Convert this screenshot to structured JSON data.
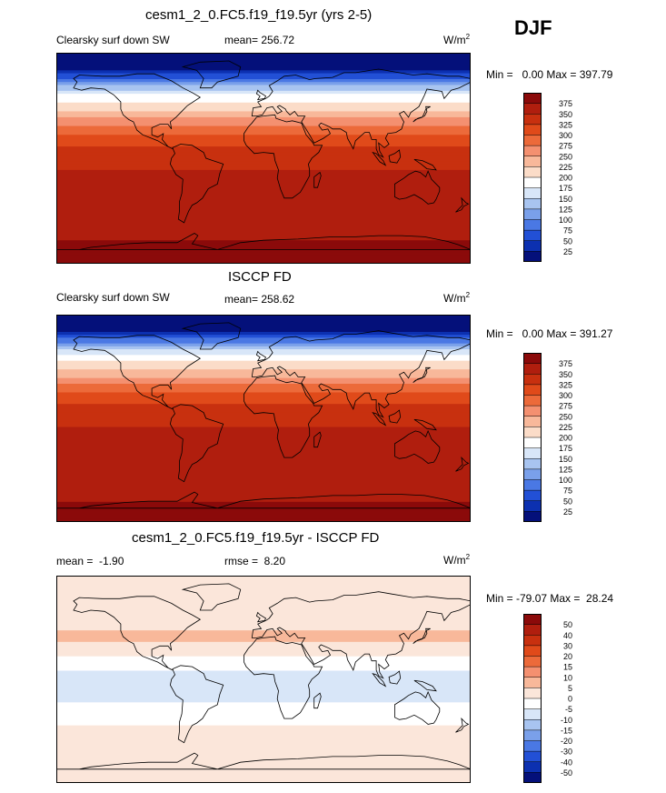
{
  "season": "DJF",
  "panels": [
    {
      "title": "cesm1_2_0.FC5.f19_f19.5yr (yrs 2-5)",
      "left_label": "Clearsky surf down SW",
      "stat_label": "mean= 256.72",
      "extra_label": "",
      "units_base": "W/m",
      "units_exp": "2",
      "minmax": "Min =   0.00 Max = 397.79"
    },
    {
      "title": "ISCCP FD",
      "left_label": "Clearsky surf down SW",
      "stat_label": "mean= 258.62",
      "extra_label": "",
      "units_base": "W/m",
      "units_exp": "2",
      "minmax": "Min =   0.00 Max = 391.27"
    },
    {
      "title": "cesm1_2_0.FC5.f19_f19.5yr - ISCCP FD",
      "left_label": "mean =  -1.90",
      "stat_label": "rmse =  8.20",
      "extra_label": "",
      "units_base": "W/m",
      "units_exp": "2",
      "minmax": "Min = -79.07 Max =  28.24"
    }
  ],
  "chart_data": [
    {
      "type": "heatmap",
      "title": "cesm1_2_0.FC5.f19_f19.5yr (yrs 2-5)",
      "variable": "Clearsky surf down SW",
      "mean": 256.72,
      "min": 0.0,
      "max": 397.79,
      "colorbar": {
        "levels": [
          375,
          350,
          325,
          300,
          275,
          250,
          225,
          200,
          175,
          150,
          125,
          100,
          75,
          50,
          25
        ],
        "colors": [
          "#8b0a0a",
          "#b01e0e",
          "#c8300f",
          "#e04a1a",
          "#ec6a3a",
          "#f49070",
          "#f8b89a",
          "#fbdcc8",
          "#ffffff",
          "#d8e6f8",
          "#a8c4f0",
          "#7aa0ea",
          "#4a78e4",
          "#2250d6",
          "#0c30b0",
          "#04107a"
        ]
      },
      "lat_bands": [
        {
          "lat": 90,
          "value": 0
        },
        {
          "lat": 75,
          "value": 20
        },
        {
          "lat": 65,
          "value": 100
        },
        {
          "lat": 55,
          "value": 175
        },
        {
          "lat": 45,
          "value": 210
        },
        {
          "lat": 35,
          "value": 245
        },
        {
          "lat": 25,
          "value": 290
        },
        {
          "lat": 15,
          "value": 315
        },
        {
          "lat": 5,
          "value": 335
        },
        {
          "lat": -5,
          "value": 345
        },
        {
          "lat": -15,
          "value": 355
        },
        {
          "lat": -25,
          "value": 360
        },
        {
          "lat": -35,
          "value": 362
        },
        {
          "lat": -45,
          "value": 355
        },
        {
          "lat": -55,
          "value": 350
        },
        {
          "lat": -65,
          "value": 360
        },
        {
          "lat": -75,
          "value": 385
        },
        {
          "lat": -90,
          "value": 395
        }
      ]
    },
    {
      "type": "heatmap",
      "title": "ISCCP FD",
      "variable": "Clearsky surf down SW",
      "mean": 258.62,
      "min": 0.0,
      "max": 391.27,
      "colorbar": {
        "levels": [
          375,
          350,
          325,
          300,
          275,
          250,
          225,
          200,
          175,
          150,
          125,
          100,
          75,
          50,
          25
        ],
        "colors": [
          "#8b0a0a",
          "#b01e0e",
          "#c8300f",
          "#e04a1a",
          "#ec6a3a",
          "#f49070",
          "#f8b89a",
          "#fbdcc8",
          "#ffffff",
          "#d8e6f8",
          "#a8c4f0",
          "#7aa0ea",
          "#4a78e4",
          "#2250d6",
          "#0c30b0",
          "#04107a"
        ]
      },
      "lat_bands": [
        {
          "lat": 90,
          "value": 0
        },
        {
          "lat": 75,
          "value": 25
        },
        {
          "lat": 65,
          "value": 110
        },
        {
          "lat": 55,
          "value": 180
        },
        {
          "lat": 45,
          "value": 215
        },
        {
          "lat": 35,
          "value": 250
        },
        {
          "lat": 25,
          "value": 290
        },
        {
          "lat": 15,
          "value": 318
        },
        {
          "lat": 5,
          "value": 338
        },
        {
          "lat": -5,
          "value": 348
        },
        {
          "lat": -15,
          "value": 356
        },
        {
          "lat": -25,
          "value": 360
        },
        {
          "lat": -35,
          "value": 362
        },
        {
          "lat": -45,
          "value": 356
        },
        {
          "lat": -55,
          "value": 350
        },
        {
          "lat": -65,
          "value": 362
        },
        {
          "lat": -75,
          "value": 380
        },
        {
          "lat": -90,
          "value": 390
        }
      ]
    },
    {
      "type": "heatmap",
      "title": "cesm1_2_0.FC5.f19_f19.5yr - ISCCP FD",
      "mean": -1.9,
      "rmse": 8.2,
      "min": -79.07,
      "max": 28.24,
      "colorbar": {
        "levels": [
          50,
          40,
          30,
          20,
          15,
          10,
          5,
          0,
          -5,
          -10,
          -15,
          -20,
          -30,
          -40,
          -50
        ],
        "colors": [
          "#8b0a0a",
          "#b01e0e",
          "#c8300f",
          "#e04a1a",
          "#ec6a3a",
          "#f49070",
          "#f8b89a",
          "#fbe6da",
          "#ffffff",
          "#d8e6f8",
          "#a8c4f0",
          "#7aa0ea",
          "#4a78e4",
          "#2250d6",
          "#0c30b0",
          "#04107a"
        ]
      },
      "lat_bands": [
        {
          "lat": 90,
          "value": 2
        },
        {
          "lat": 70,
          "value": 3
        },
        {
          "lat": 50,
          "value": 4
        },
        {
          "lat": 35,
          "value": 6
        },
        {
          "lat": 25,
          "value": 3
        },
        {
          "lat": 15,
          "value": -2
        },
        {
          "lat": 5,
          "value": -6
        },
        {
          "lat": -5,
          "value": -8
        },
        {
          "lat": -15,
          "value": -6
        },
        {
          "lat": -25,
          "value": -4
        },
        {
          "lat": -35,
          "value": -2
        },
        {
          "lat": -45,
          "value": 2
        },
        {
          "lat": -55,
          "value": 4
        },
        {
          "lat": -65,
          "value": 3
        },
        {
          "lat": -75,
          "value": 1
        },
        {
          "lat": -90,
          "value": 1
        }
      ]
    }
  ]
}
